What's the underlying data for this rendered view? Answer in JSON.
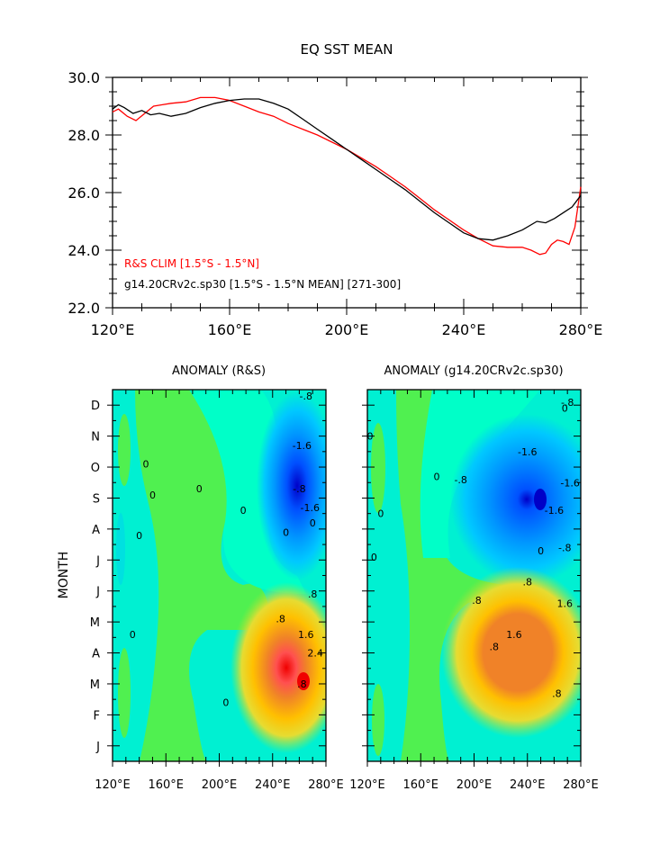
{
  "chart_data": [
    {
      "type": "line",
      "title": "EQ SST MEAN",
      "xlabel": "",
      "ylabel": "",
      "xlim": [
        120,
        280
      ],
      "ylim": [
        22,
        30
      ],
      "x_ticks": [
        120,
        160,
        200,
        240,
        280
      ],
      "x_tick_labels": [
        "120°E",
        "160°E",
        "200°E",
        "240°E",
        "280°E"
      ],
      "y_ticks": [
        22,
        24,
        26,
        28,
        30
      ],
      "y_tick_labels": [
        "22.0",
        "24.0",
        "26.0",
        "28.0",
        "30.0"
      ],
      "legend_position": "bottom-left inside",
      "series": [
        {
          "name": "R&S CLIM [1.5°S - 1.5°N]",
          "color": "#ff0000",
          "x": [
            120,
            122,
            125,
            128,
            131,
            134,
            137,
            140,
            145,
            150,
            155,
            160,
            165,
            170,
            175,
            180,
            185,
            190,
            195,
            200,
            205,
            210,
            215,
            220,
            225,
            230,
            235,
            240,
            245,
            250,
            255,
            260,
            263,
            266,
            268,
            270,
            272,
            274,
            276,
            278,
            280
          ],
          "y": [
            28.8,
            28.9,
            28.65,
            28.5,
            28.75,
            29.0,
            29.05,
            29.1,
            29.15,
            29.3,
            29.3,
            29.2,
            29.0,
            28.8,
            28.65,
            28.4,
            28.2,
            28.0,
            27.75,
            27.5,
            27.2,
            26.9,
            26.55,
            26.2,
            25.8,
            25.4,
            25.05,
            24.7,
            24.4,
            24.15,
            24.1,
            24.1,
            24.0,
            23.85,
            23.9,
            24.2,
            24.35,
            24.3,
            24.2,
            24.8,
            26.2
          ]
        },
        {
          "name": "g14.20CRv2c.sp30 [1.5°S - 1.5°N MEAN] [271-300]",
          "color": "#000000",
          "x": [
            120,
            122,
            124,
            127,
            130,
            133,
            136,
            140,
            145,
            150,
            155,
            160,
            165,
            170,
            175,
            180,
            185,
            190,
            195,
            200,
            205,
            210,
            215,
            220,
            225,
            230,
            235,
            240,
            245,
            250,
            255,
            260,
            265,
            268,
            271,
            274,
            277,
            280
          ],
          "y": [
            28.9,
            29.05,
            28.95,
            28.75,
            28.85,
            28.7,
            28.75,
            28.65,
            28.75,
            28.95,
            29.1,
            29.2,
            29.25,
            29.25,
            29.1,
            28.9,
            28.55,
            28.2,
            27.85,
            27.5,
            27.15,
            26.8,
            26.45,
            26.1,
            25.7,
            25.3,
            24.95,
            24.6,
            24.4,
            24.35,
            24.5,
            24.7,
            25.0,
            24.95,
            25.1,
            25.3,
            25.5,
            25.9
          ]
        }
      ]
    },
    {
      "type": "heatmap",
      "title": "ANOMALY (R&S)",
      "xlabel": "",
      "ylabel": "MONTH",
      "xlim": [
        120,
        280
      ],
      "x_tick_labels": [
        "120°E",
        "160°E",
        "200°E",
        "240°E",
        "280°E"
      ],
      "y_categories": [
        "J",
        "F",
        "M",
        "A",
        "M",
        "J",
        "J",
        "A",
        "S",
        "O",
        "N",
        "D"
      ],
      "contour_labels": [
        "0",
        "-.8",
        "-1.6",
        ".8",
        "1.6",
        "2.4"
      ],
      "color_scale": [
        "#00dcdc",
        "#00f0f0",
        "#00ffc8",
        "#50f050",
        "#a0e632",
        "#e6dc32",
        "#ffc000",
        "#f08228",
        "#ff5050",
        "#f00000"
      ],
      "negative_color_scale": [
        "#00ffff",
        "#00c8ff",
        "#0096ff",
        "#0050ff",
        "#0000cc"
      ],
      "features": [
        {
          "kind": "cold",
          "center_lon": 265,
          "center_month": "S",
          "peak": -2.4
        },
        {
          "kind": "warm",
          "center_lon": 265,
          "center_month": "M",
          "peak": 2.4
        }
      ]
    },
    {
      "type": "heatmap",
      "title": "ANOMALY (g14.20CRv2c.sp30)",
      "xlabel": "",
      "ylabel": "",
      "xlim": [
        120,
        280
      ],
      "x_tick_labels": [
        "120°E",
        "160°E",
        "200°E",
        "240°E",
        "280°E"
      ],
      "y_categories": [
        "J",
        "F",
        "M",
        "A",
        "M",
        "J",
        "J",
        "A",
        "S",
        "O",
        "N",
        "D"
      ],
      "contour_labels": [
        "0",
        "-.8",
        "-1.6",
        ".8",
        "1.6"
      ],
      "features": [
        {
          "kind": "cold",
          "center_lon": 255,
          "center_month": "S",
          "peak": -2.2
        },
        {
          "kind": "warm",
          "center_lon": 255,
          "center_month": "A",
          "peak": 2.0
        }
      ]
    }
  ]
}
